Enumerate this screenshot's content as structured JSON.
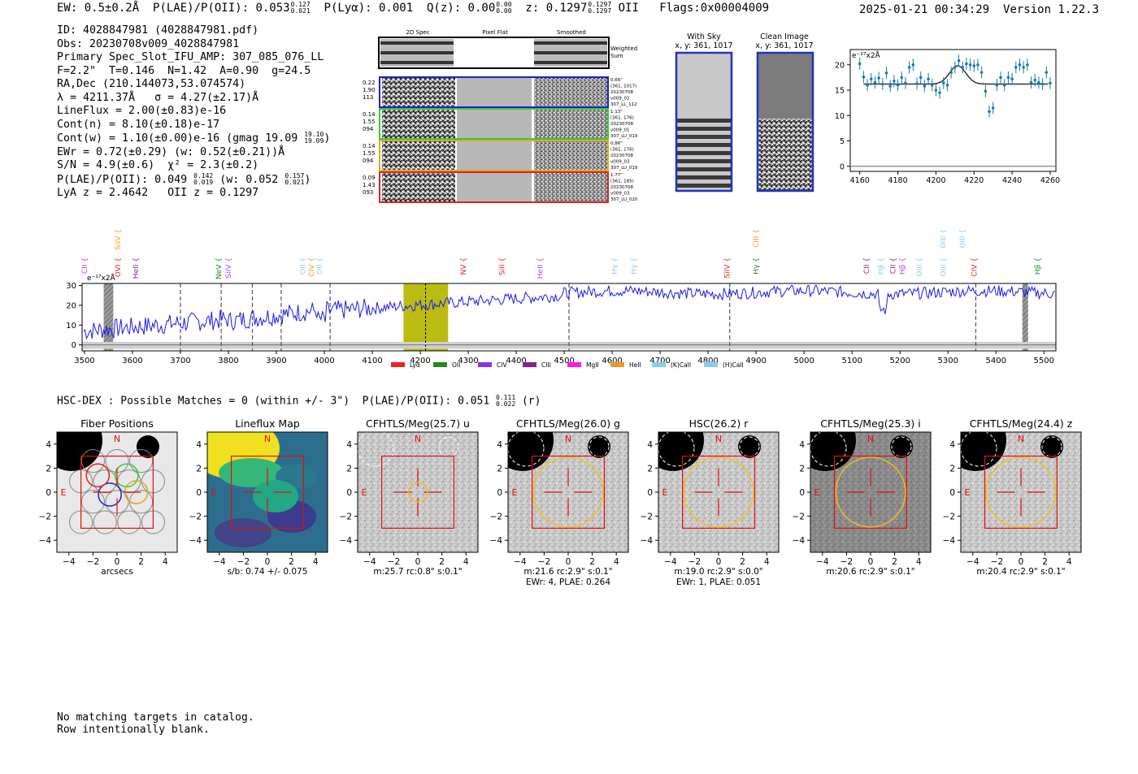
{
  "header": {
    "ew": "EW: 0.5±0.2Å",
    "plae_label": "P(LAE)/P(OII): 0.053",
    "plae_hi": "0.127",
    "plae_lo": "0.021",
    "plya": "P(Lyα): 0.001",
    "qz_label": "Q(z): 0.00",
    "qz_hi": "0.00",
    "qz_lo": "0.00",
    "z_label": "z: 0.1297",
    "z_hi": "0.1297",
    "z_lo": "0.1297",
    "z_line": "OII",
    "flags": "Flags:0x00004009",
    "datetime": "2025-01-21 00:34:29",
    "version": "Version 1.22.3"
  },
  "info": {
    "id": "ID: 4028847981 (4028847981.pdf)",
    "obs": "Obs: 20230708v009_4028847981",
    "primary": "Primary Spec_Slot_IFU_AMP: 307_085_076_LL",
    "params": "F=2.2\"  T=0.146  N=1.42  A=0.90  g=24.5",
    "radec": "RA,Dec (210.144073,53.074574)",
    "lambda": "λ = 4211.37Å   σ = 4.27(±2.17)Å",
    "lineflux": "LineFlux = 2.00(±0.83)e-16",
    "contn": "Cont(n) = 8.10(±0.18)e-17",
    "contw": "Cont(w) = 1.10(±0.00)e-16 (gmag 19.09",
    "contw_hi": "19.10",
    "contw_lo": "19.09",
    "ewr": "EWr = 0.72(±0.29) (w: 0.52(±0.21))Å",
    "sn": "S/N = 4.9(±0.6)  χ² = 2.3(±0.2)",
    "plae": "P(LAE)/P(OII): 0.049",
    "plae_hi": "0.142",
    "plae_lo": "0.019",
    "plae_w": "(w: 0.052",
    "plae_w_hi": "0.157",
    "plae_w_lo": "0.021",
    "z": "LyA z = 2.4642   OII z = 0.1297"
  },
  "cutouts": {
    "col_labels": [
      "2D Spec",
      "Pixel Flat",
      "Smoothed"
    ],
    "weighted_sum": [
      "Weighted",
      "Sum"
    ],
    "rows": [
      {
        "left": [
          "0.22",
          "1.90",
          "113"
        ],
        "right": [
          "0.66\"",
          "(361, 1017)",
          "20230708",
          "v009_02",
          "307_LL_112"
        ],
        "color": "#1f1fcc"
      },
      {
        "left": [
          "0.14",
          "1.55",
          "094"
        ],
        "right": [
          "1.13\"",
          "(361, 176)",
          "20230708",
          "v009_01",
          "307_LU_019"
        ],
        "color": "#33cc33"
      },
      {
        "left": [
          "0.14",
          "1.55",
          "094"
        ],
        "right": [
          "0.86\"",
          "(361, 176)",
          "20230708",
          "v009_03",
          "307_LU_019"
        ],
        "color": "#ddaa22"
      },
      {
        "left": [
          "0.09",
          "1.43",
          "093"
        ],
        "right": [
          "1.77\"",
          "(361, 185)",
          "20230708",
          "v009_03",
          "307_LU_020"
        ],
        "color": "#dd2222"
      }
    ]
  },
  "sky_panels": {
    "with_sky": {
      "title": "With Sky",
      "coords": "x, y: 361, 1017"
    },
    "clean": {
      "title": "Clean Image",
      "coords": "x, y: 361, 1017"
    }
  },
  "zoom_chart": {
    "unit_label": "e⁻¹⁷x2Å",
    "x_ticks": [
      4160,
      4180,
      4200,
      4220,
      4240,
      4260
    ],
    "y_ticks": [
      0,
      5,
      10,
      15,
      20
    ],
    "xlim": [
      4155,
      4263
    ],
    "ylim": [
      -1,
      23
    ]
  },
  "chart_data": [
    {
      "type": "scatter",
      "x": [
        4160,
        4162,
        4164,
        4166,
        4168,
        4170,
        4172,
        4174,
        4176,
        4178,
        4180,
        4182,
        4184,
        4186,
        4188,
        4190,
        4192,
        4194,
        4196,
        4198,
        4200,
        4202,
        4204,
        4206,
        4208,
        4210,
        4212,
        4214,
        4216,
        4218,
        4220,
        4222,
        4224,
        4226,
        4228,
        4230,
        4232,
        4234,
        4236,
        4238,
        4240,
        4242,
        4244,
        4246,
        4248,
        4250,
        4252,
        4254,
        4256,
        4258,
        4260
      ],
      "values": [
        20.2,
        17.6,
        16.0,
        17.2,
        16.5,
        17.4,
        16.2,
        18.4,
        15.8,
        16.8,
        16.0,
        17.5,
        16.4,
        19.5,
        20.0,
        16.3,
        17.5,
        15.8,
        17.2,
        16.0,
        15.0,
        14.5,
        16.4,
        16.0,
        18.5,
        19.5,
        20.8,
        19.5,
        20.2,
        20.0,
        19.8,
        20.0,
        18.5,
        14.8,
        10.8,
        11.5,
        16.0,
        17.5,
        16.0,
        17.5,
        17.2,
        19.5,
        20.0,
        19.5,
        20.0,
        16.5,
        17.0,
        16.5,
        16.2,
        18.5,
        16.4
      ],
      "fit_baseline": 16.2,
      "fit_peak": 3.6,
      "fit_center": 4211.4,
      "fit_sigma": 4.27
    },
    {
      "type": "line",
      "unit_label": "e⁻¹⁷x2Å",
      "xlim": [
        3495,
        5525
      ],
      "ylim": [
        -3,
        31
      ],
      "x_ticks": [
        3500,
        3600,
        3700,
        3800,
        3900,
        4000,
        4100,
        4200,
        4300,
        4400,
        4500,
        4600,
        4700,
        4800,
        4900,
        5000,
        5100,
        5200,
        5300,
        5400,
        5500
      ],
      "y_ticks": [
        0,
        10,
        20,
        30
      ],
      "highlight_band": [
        4165,
        4258
      ],
      "line_center": 4211,
      "dashed_lines": [
        3700,
        3785,
        3850,
        3910,
        4012,
        4510,
        4845,
        5358
      ],
      "masked_bands": [
        [
          3540,
          3560
        ],
        [
          5455,
          5467
        ]
      ],
      "labels": [
        {
          "text": "CII",
          "x": 3505,
          "row": 1,
          "color": "#ee22ee"
        },
        {
          "text": "SiIV",
          "x": 3575,
          "row": 0,
          "color": "#ee9922"
        },
        {
          "text": "OVI",
          "x": 3575,
          "row": 1,
          "color": "#dd2222"
        },
        {
          "text": "HeII",
          "x": 3612,
          "row": 1,
          "color": "#882288"
        },
        {
          "text": "NeV",
          "x": 3785,
          "row": 1,
          "color": "#228822"
        },
        {
          "text": "SiIV",
          "x": 3805,
          "row": 1,
          "color": "#aa44ee"
        },
        {
          "text": "OII",
          "x": 3960,
          "row": 1,
          "color": "#88ccee"
        },
        {
          "text": "CIV",
          "x": 3978,
          "row": 1,
          "color": "#ee9922"
        },
        {
          "text": "OII",
          "x": 3995,
          "row": 1,
          "color": "#88ccee"
        },
        {
          "text": "NV",
          "x": 4295,
          "row": 1,
          "color": "#dd2222"
        },
        {
          "text": "SiII",
          "x": 4375,
          "row": 1,
          "color": "#dd2222"
        },
        {
          "text": "HeII",
          "x": 4455,
          "row": 1,
          "color": "#aa44ee"
        },
        {
          "text": "Hγ",
          "x": 4610,
          "row": 1,
          "color": "#88ccee"
        },
        {
          "text": "Hγ",
          "x": 4650,
          "row": 1,
          "color": "#88ccee"
        },
        {
          "text": "SiIV",
          "x": 4845,
          "row": 1,
          "color": "#dd2222"
        },
        {
          "text": "CIII",
          "x": 4905,
          "row": 0,
          "color": "#ee9922"
        },
        {
          "text": "Hγ",
          "x": 4905,
          "row": 1,
          "color": "#228822"
        },
        {
          "text": "CII",
          "x": 5135,
          "row": 1,
          "color": "#882288"
        },
        {
          "text": "Hβ",
          "x": 5165,
          "row": 1,
          "color": "#88ccee"
        },
        {
          "text": "CII",
          "x": 5190,
          "row": 1,
          "color": "#882288"
        },
        {
          "text": "Hβ",
          "x": 5210,
          "row": 1,
          "color": "#aa44ee"
        },
        {
          "text": "OIII",
          "x": 5245,
          "row": 1,
          "color": "#88ccee"
        },
        {
          "text": "OIII",
          "x": 5295,
          "row": 0,
          "color": "#88ccee"
        },
        {
          "text": "OIII",
          "x": 5295,
          "row": 1,
          "color": "#88ccee"
        },
        {
          "text": "OIII",
          "x": 5335,
          "row": 0,
          "color": "#88ccee"
        },
        {
          "text": "CIV",
          "x": 5360,
          "row": 1,
          "color": "#dd2222"
        },
        {
          "text": "Hβ",
          "x": 5492,
          "row": 1,
          "color": "#228822"
        }
      ],
      "legend": [
        {
          "name": "Lyα",
          "color": "#ee2222"
        },
        {
          "name": "OII",
          "color": "#228822"
        },
        {
          "name": "CIV",
          "color": "#8833ee"
        },
        {
          "name": "CIII",
          "color": "#882288"
        },
        {
          "name": "MgII",
          "color": "#ee22ee"
        },
        {
          "name": "HeII",
          "color": "#ee9922"
        },
        {
          "name": "(K)CaII",
          "color": "#88ccee"
        },
        {
          "name": "(H)CaII",
          "color": "#88ccee"
        }
      ]
    }
  ],
  "hsc": {
    "title": "HSC-DEX : Possible Matches = 0 (within +/- 3\")  P(LAE)/P(OII): 0.051",
    "plae_hi": "0.111",
    "plae_lo": "0.022",
    "band": "(r)"
  },
  "imaging": {
    "x_ticks": [
      -4,
      -2,
      0,
      2,
      4
    ],
    "y_ticks": [
      4,
      2,
      0,
      -2,
      -4
    ],
    "panels": [
      {
        "title": "Fiber Positions",
        "caption1": "arcsecs",
        "caption2": "",
        "kind": "fiber"
      },
      {
        "title": "Lineflux Map",
        "caption1": "s/b: 0.74 +/- 0.075",
        "caption2": "",
        "kind": "lineflux"
      },
      {
        "title": "CFHTLS/Meg(25.7) u",
        "caption1": "m:25.7 rc:0.8\"  s:0.1\"",
        "caption2": "",
        "kind": "u",
        "aperture": 0.8
      },
      {
        "title": "CFHTLS/Meg(26.0) g",
        "caption1": "m:21.6 rc:2.9\"  s:0.1\"",
        "caption2": "EWr: 4, PLAE: 0.264",
        "kind": "g",
        "aperture": 2.9
      },
      {
        "title": "HSC(26.2) r",
        "caption1": "m:19.0 rc:2.9\"  s:0.0\"",
        "caption2": "EWr: 1, PLAE: 0.051",
        "kind": "r",
        "aperture": 2.9
      },
      {
        "title": "CFHTLS/Meg(25.3) i",
        "caption1": "m:20.6 rc:2.9\"  s:0.1\"",
        "caption2": "",
        "kind": "i",
        "aperture": 2.9
      },
      {
        "title": "CFHTLS/Meg(24.4) z",
        "caption1": "m:20.4 rc:2.9\"  s:0.1\"",
        "caption2": "",
        "kind": "z",
        "aperture": 2.9
      }
    ],
    "north": "N",
    "east": "E"
  },
  "footer": {
    "line1": "No matching targets in catalog.",
    "line2": "Row intentionally blank."
  }
}
